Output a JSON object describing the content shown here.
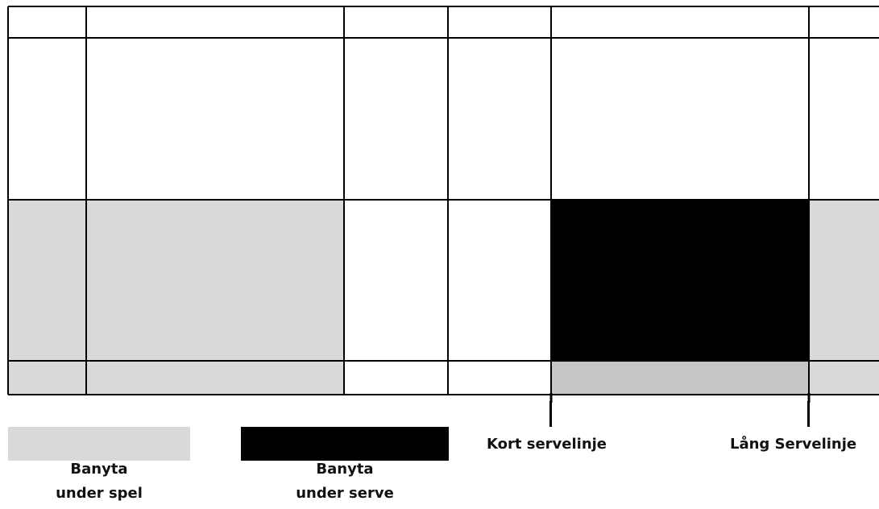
{
  "colors": {
    "play_area": "#d9d9d9",
    "serve_area": "#000000",
    "overlap_area": "#c6c6c6",
    "lines": "#000000",
    "background": "#ffffff"
  },
  "legend": {
    "play": {
      "line1": "Banyta",
      "line2": "under spel"
    },
    "serve": {
      "line1": "Banyta",
      "line2": "under serve"
    }
  },
  "markers": {
    "short_service_line": "Kort servelinje",
    "long_service_line": "Lång Servelinje"
  }
}
